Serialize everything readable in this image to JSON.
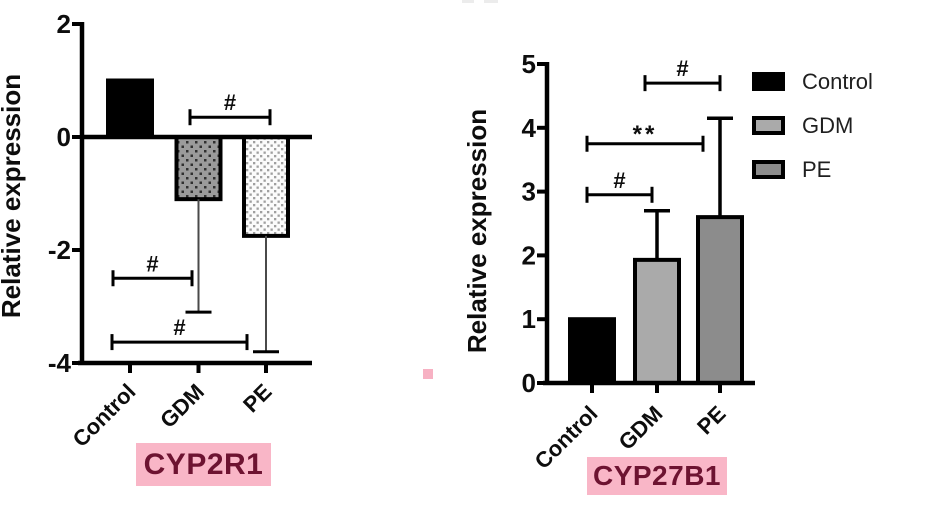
{
  "figure": {
    "background": "#ffffff",
    "pink_highlight": "#f9b6c7",
    "maroon_text": "#6d1331",
    "artifact_pink": "#f7b1c3",
    "axis_color": "#000000"
  },
  "legend": {
    "position": "top-right",
    "items": [
      {
        "label": "Control",
        "swatch_fill": "#000000",
        "swatch_border": "#000000"
      },
      {
        "label": "GDM",
        "swatch_fill": "#aaaaaa",
        "swatch_border": "#000000"
      },
      {
        "label": "PE",
        "swatch_fill": "#8c8c8c",
        "swatch_border": "#000000"
      }
    ]
  },
  "chart_data": [
    {
      "type": "bar",
      "gene_label": "CYP2R1",
      "ylabel": "Relative expression",
      "xlabel": "",
      "categories": [
        "Control",
        "GDM",
        "PE"
      ],
      "values": [
        1.0,
        -1.1,
        -1.75
      ],
      "error_to": [
        null,
        -3.1,
        -3.8
      ],
      "ylim": [
        -4,
        2
      ],
      "yticks": [
        2,
        0,
        -2,
        -4
      ],
      "grid": false,
      "legend_shown": false,
      "bar_fills": [
        "#000000",
        "pattern-gray-dots",
        "pattern-light-dots"
      ],
      "comparisons": [
        {
          "group_a": "GDM",
          "group_b": "PE",
          "y": 0.35,
          "label": "#"
        },
        {
          "group_a": "Control",
          "group_b": "GDM",
          "y": -2.5,
          "label": "#"
        },
        {
          "group_a": "Control",
          "group_b": "PE",
          "y": -3.63,
          "label": "#"
        }
      ]
    },
    {
      "type": "bar",
      "gene_label": "CYP27B1",
      "ylabel": "Relative expression",
      "xlabel": "",
      "categories": [
        "Control",
        "GDM",
        "PE"
      ],
      "values": [
        1.0,
        1.93,
        2.6
      ],
      "error_to": [
        null,
        2.7,
        4.15
      ],
      "ylim": [
        0,
        5
      ],
      "yticks": [
        0,
        1,
        2,
        3,
        4,
        5
      ],
      "grid": false,
      "legend_shown": true,
      "bar_fills": [
        "#000000",
        "#aaaaaa",
        "#8c8c8c"
      ],
      "comparisons": [
        {
          "group_a": "Control",
          "group_b": "GDM",
          "y": 2.95,
          "label": "#"
        },
        {
          "group_a": "Control",
          "group_b": "PE",
          "y": 3.75,
          "label": "**"
        },
        {
          "group_a": "GDM",
          "group_b": "PE",
          "y": 4.7,
          "label": "#"
        }
      ]
    }
  ]
}
